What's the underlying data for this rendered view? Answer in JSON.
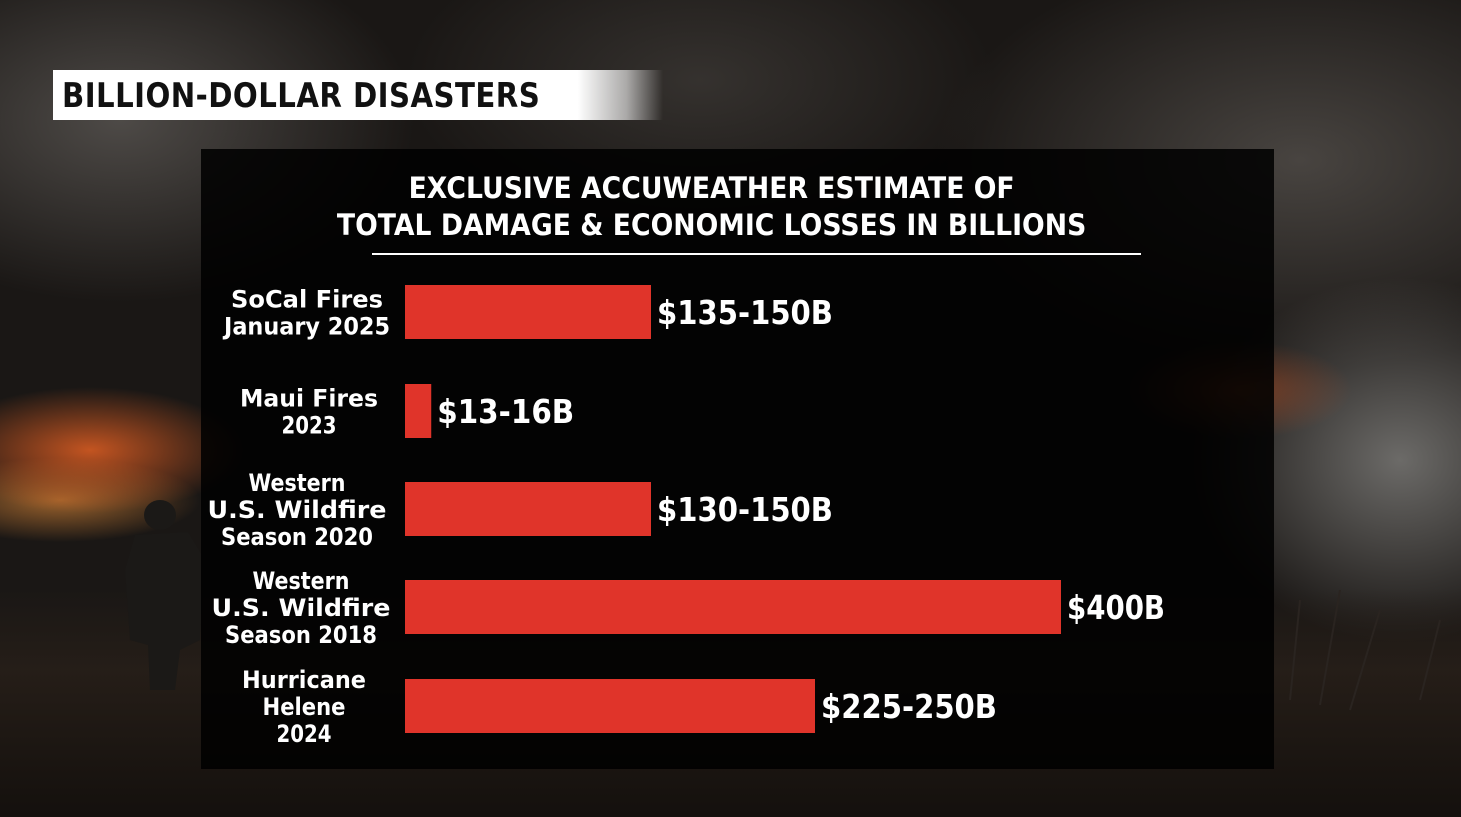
{
  "headline": "BILLION-DOLLAR DISASTERS",
  "colors": {
    "bar": "#e0342a",
    "panel": "#000000",
    "text": "#ffffff",
    "headline_bg": "#ffffff"
  },
  "chart_data": {
    "type": "bar",
    "orientation": "horizontal",
    "title": [
      "EXCLUSIVE ACCUWEATHER ESTIMATE OF",
      "TOTAL DAMAGE & ECONOMIC LOSSES IN BILLIONS"
    ],
    "categories": [
      [
        "SoCal Fires",
        "January 2025"
      ],
      [
        "Maui Fires",
        "2023"
      ],
      [
        "Western",
        "U.S. Wildfire",
        "Season 2020"
      ],
      [
        "Western",
        "U.S. Wildfire",
        "Season 2018"
      ],
      [
        "Hurricane",
        "Helene",
        "2024"
      ]
    ],
    "values": [
      150,
      16,
      150,
      400,
      250
    ],
    "value_labels": [
      "$135-150B",
      "$13-16B",
      "$130-150B",
      "$400B",
      "$225-250B"
    ],
    "unit": "billions of dollars",
    "xlim": [
      0,
      400
    ],
    "grid": false,
    "legend": "none"
  }
}
